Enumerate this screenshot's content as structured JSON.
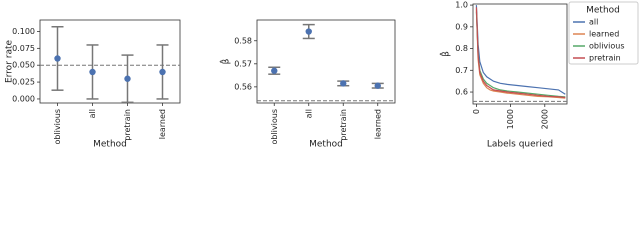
{
  "chart_data": [
    {
      "type": "errorbar",
      "ylabel": "Error rate",
      "xlabel": "Method",
      "categories": [
        "oblivious",
        "all",
        "pretrain",
        "learned"
      ],
      "values": [
        0.06,
        0.04,
        0.03,
        0.04
      ],
      "errors": [
        0.047,
        0.04,
        0.035,
        0.04
      ],
      "color": "#4c72b0",
      "hline": 0.05,
      "ylim": [
        -0.006,
        0.117
      ],
      "yticks": [
        {
          "value": 0,
          "label": "0.000"
        },
        {
          "value": 0.025,
          "label": "0.025"
        },
        {
          "value": 0.05,
          "label": "0.050"
        },
        {
          "value": 0.075,
          "label": "0.075"
        },
        {
          "value": 0.1,
          "label": "0.100"
        }
      ]
    },
    {
      "type": "errorbar",
      "ylabel": "β̂",
      "xlabel": "Method",
      "categories": [
        "oblivious",
        "all",
        "pretrain",
        "learned"
      ],
      "values": [
        0.567,
        0.584,
        0.5615,
        0.5605
      ],
      "errors": [
        0.0015,
        0.003,
        0.001,
        0.001
      ],
      "color": "#4c72b0",
      "hline": 0.554,
      "ylim": [
        0.553,
        0.589
      ],
      "yticks": [
        0.56,
        0.57,
        0.58
      ]
    },
    {
      "type": "line",
      "ylabel": "β̂",
      "xlabel": "Labels queried",
      "legend_title": "Method",
      "x": [
        0,
        50,
        100,
        200,
        300,
        400,
        500,
        700,
        900,
        1200,
        1500,
        1800,
        2100,
        2400,
        2600
      ],
      "series": [
        {
          "name": "all",
          "color": "#4c72b0",
          "values": [
            1.0,
            0.82,
            0.74,
            0.69,
            0.67,
            0.66,
            0.65,
            0.64,
            0.635,
            0.63,
            0.625,
            0.62,
            0.615,
            0.61,
            0.59
          ]
        },
        {
          "name": "learned",
          "color": "#dd8452",
          "values": [
            0.98,
            0.75,
            0.68,
            0.64,
            0.62,
            0.61,
            0.605,
            0.6,
            0.595,
            0.59,
            0.585,
            0.58,
            0.578,
            0.575,
            0.572
          ]
        },
        {
          "name": "oblivious",
          "color": "#55a868",
          "values": [
            0.97,
            0.78,
            0.7,
            0.66,
            0.64,
            0.63,
            0.62,
            0.61,
            0.605,
            0.6,
            0.595,
            0.59,
            0.585,
            0.58,
            0.578
          ]
        },
        {
          "name": "pretrain",
          "color": "#c44e52",
          "values": [
            0.99,
            0.77,
            0.69,
            0.65,
            0.63,
            0.62,
            0.61,
            0.605,
            0.6,
            0.595,
            0.59,
            0.585,
            0.58,
            0.578,
            0.575
          ]
        }
      ],
      "hline": 0.557,
      "xlim": [
        -100,
        2650
      ],
      "xticks": [
        0,
        1000,
        2000
      ],
      "ylim": [
        0.545,
        1.005
      ],
      "yticks": [
        0.6,
        0.7,
        0.8,
        0.9,
        {
          "value": 1,
          "label": "1.0"
        }
      ]
    }
  ]
}
